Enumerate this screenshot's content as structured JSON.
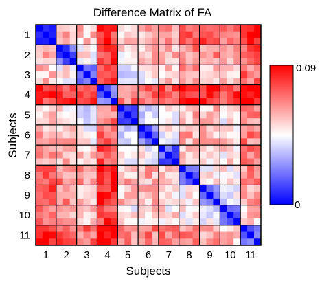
{
  "chart_data": {
    "type": "heatmap",
    "title": "Difference Matrix of FA",
    "xlabel": "Subjects",
    "ylabel": "Subjects",
    "x_ticks": [
      "1",
      "2",
      "3",
      "4",
      "5",
      "6",
      "7",
      "8",
      "9",
      "10",
      "11"
    ],
    "y_ticks": [
      "1",
      "2",
      "3",
      "4",
      "5",
      "6",
      "7",
      "8",
      "9",
      "10",
      "11"
    ],
    "sessions_per_subject": 3,
    "colorbar": {
      "min": 0,
      "max": 0.09,
      "min_label": "0",
      "max_label": "0.09",
      "colors": [
        "#0000ff",
        "#ffffff",
        "#ff0000"
      ]
    },
    "block_values": [
      [
        0.015,
        0.06,
        0.055,
        0.08,
        0.052,
        0.058,
        0.062,
        0.072,
        0.075,
        0.065,
        0.085
      ],
      [
        0.06,
        0.018,
        0.05,
        0.078,
        0.048,
        0.055,
        0.06,
        0.066,
        0.065,
        0.058,
        0.074
      ],
      [
        0.055,
        0.05,
        0.015,
        0.075,
        0.042,
        0.048,
        0.055,
        0.062,
        0.058,
        0.055,
        0.07
      ],
      [
        0.08,
        0.078,
        0.075,
        0.025,
        0.068,
        0.07,
        0.075,
        0.085,
        0.085,
        0.078,
        0.09
      ],
      [
        0.052,
        0.048,
        0.042,
        0.068,
        0.02,
        0.035,
        0.045,
        0.058,
        0.055,
        0.048,
        0.065
      ],
      [
        0.058,
        0.055,
        0.048,
        0.07,
        0.035,
        0.018,
        0.045,
        0.06,
        0.056,
        0.052,
        0.067
      ],
      [
        0.062,
        0.06,
        0.055,
        0.075,
        0.045,
        0.045,
        0.018,
        0.055,
        0.052,
        0.05,
        0.068
      ],
      [
        0.072,
        0.066,
        0.062,
        0.085,
        0.058,
        0.06,
        0.055,
        0.02,
        0.045,
        0.05,
        0.065
      ],
      [
        0.075,
        0.065,
        0.058,
        0.085,
        0.055,
        0.056,
        0.052,
        0.045,
        0.018,
        0.04,
        0.06
      ],
      [
        0.065,
        0.058,
        0.055,
        0.078,
        0.048,
        0.052,
        0.05,
        0.05,
        0.04,
        0.018,
        0.055
      ],
      [
        0.085,
        0.074,
        0.07,
        0.09,
        0.065,
        0.067,
        0.068,
        0.065,
        0.06,
        0.055,
        0.02
      ]
    ]
  }
}
